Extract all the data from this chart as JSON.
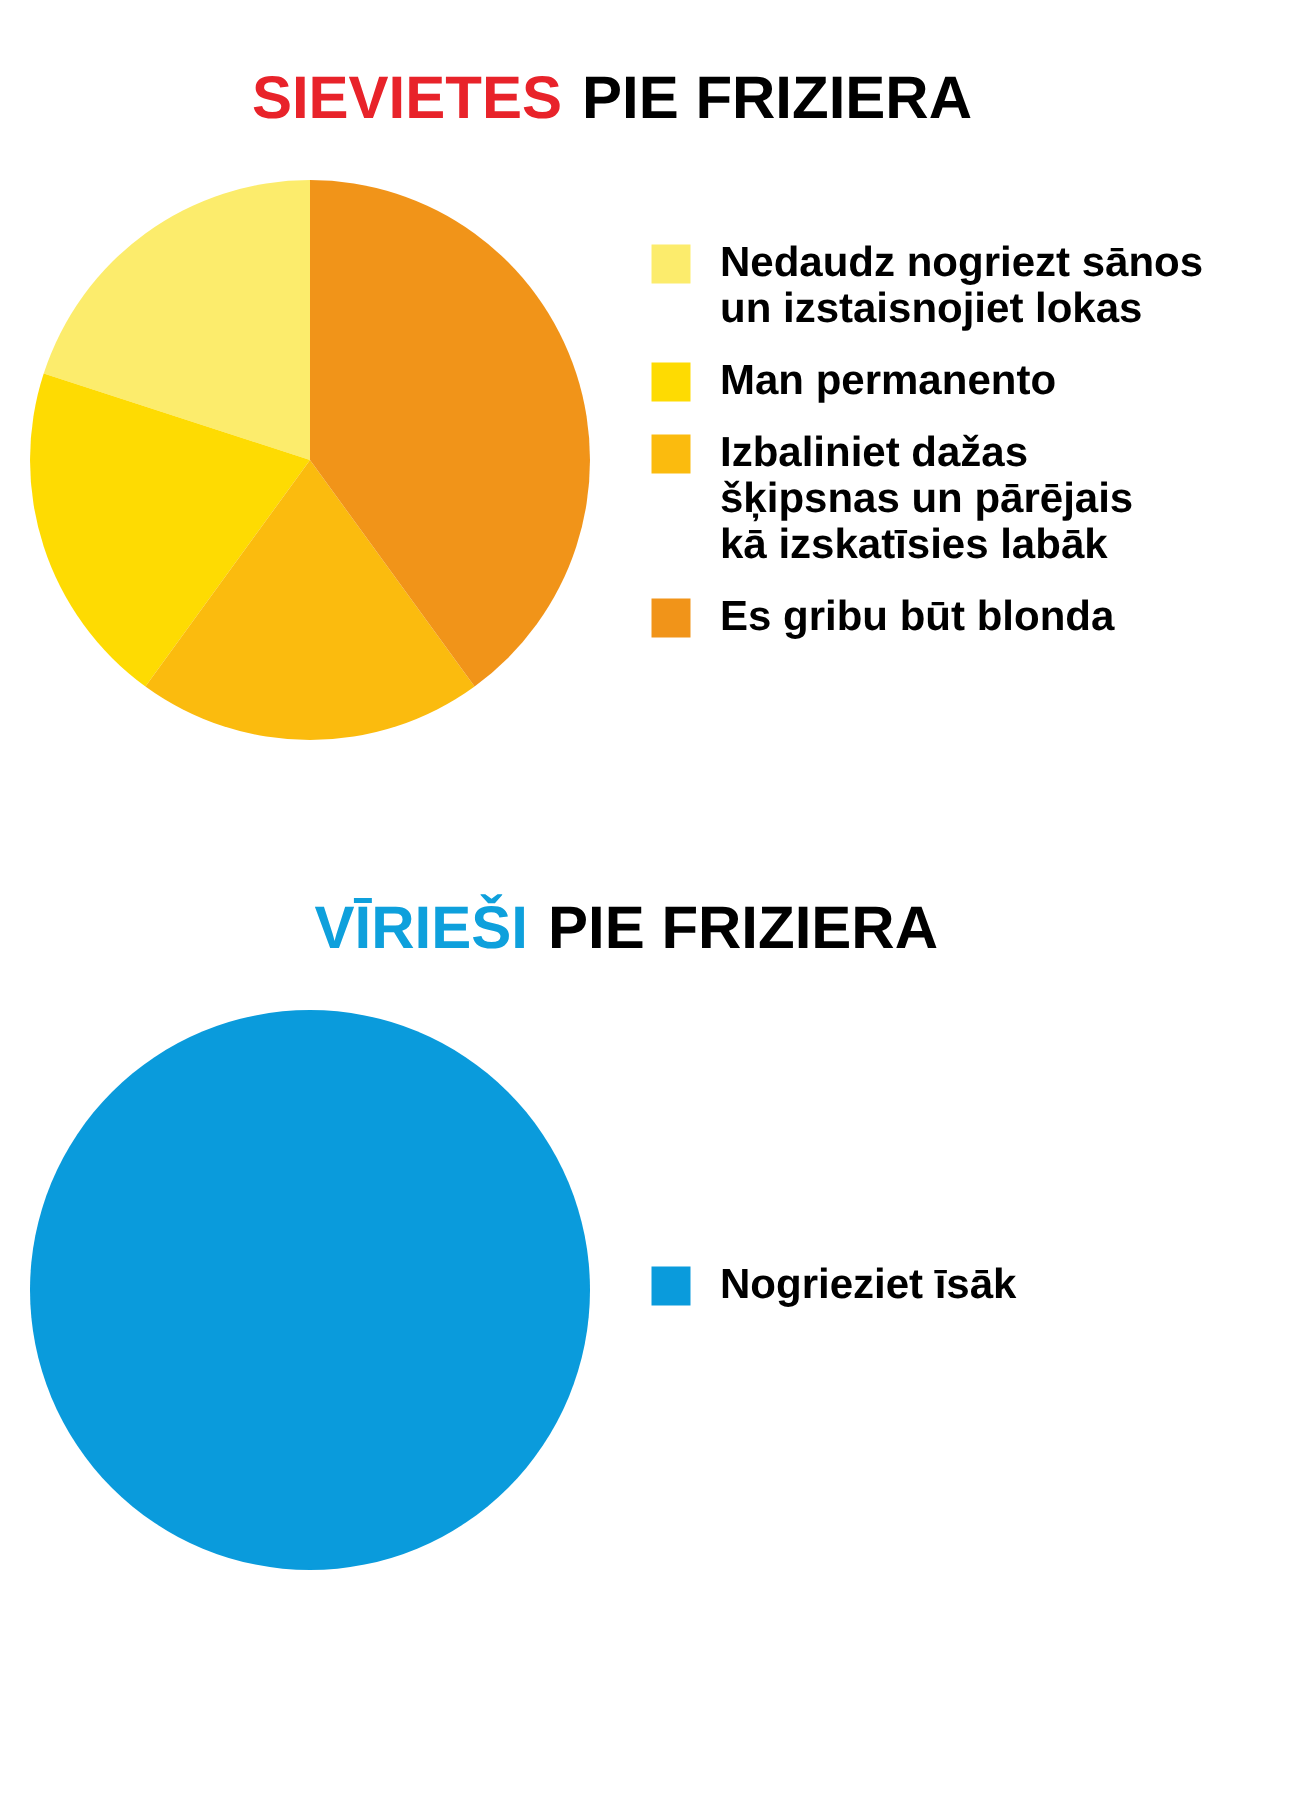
{
  "chart_data": [
    {
      "type": "pie",
      "title": "SIEVIETES PIE FRIZIERA",
      "categories": [
        "Nedaudz nogriezt sānos un izstaisnojiet lokas",
        "Man permanento",
        "Izbaliniet dažas šķipsnas un pārējais kā izskatīsies labāk",
        "Es gribu būt blonda"
      ],
      "values": [
        20,
        20,
        20,
        40
      ],
      "colors": [
        "#fcec6c",
        "#fedb02",
        "#fbbb0e",
        "#f19419"
      ],
      "legend": "right"
    },
    {
      "type": "pie",
      "title": "VĪRIEŠI PIE FRIZIERA",
      "categories": [
        "Nogrieziet īsāk"
      ],
      "values": [
        100
      ],
      "colors": [
        "#0a9bdc"
      ],
      "legend": "right"
    }
  ]
}
